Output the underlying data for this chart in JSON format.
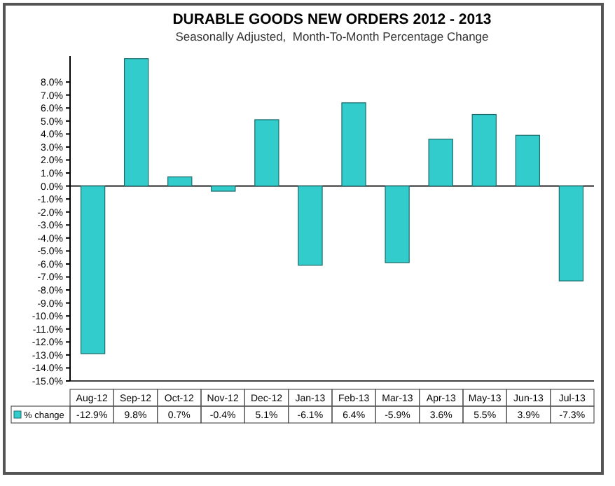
{
  "chart_data": {
    "type": "bar",
    "title": "DURABLE GOODS NEW ORDERS 2012 - 2013",
    "subtitle": "Seasonally Adjusted,  Month-To-Month Percentage Change",
    "categories": [
      "Aug-12",
      "Sep-12",
      "Oct-12",
      "Nov-12",
      "Dec-12",
      "Jan-13",
      "Feb-13",
      "Mar-13",
      "Apr-13",
      "May-13",
      "Jun-13",
      "Jul-13"
    ],
    "series": [
      {
        "name": "% change",
        "color": "#33cccc",
        "values": [
          -12.9,
          9.8,
          0.7,
          -0.4,
          5.1,
          -6.1,
          6.4,
          -5.9,
          3.6,
          5.5,
          3.9,
          -7.3
        ]
      }
    ],
    "value_labels": [
      "-12.9%",
      "9.8%",
      "0.7%",
      "-0.4%",
      "5.1%",
      "-6.1%",
      "6.4%",
      "-5.9%",
      "3.6%",
      "5.5%",
      "3.9%",
      "-7.3%"
    ],
    "ylim": [
      -15,
      10
    ],
    "yticks": [
      {
        "value": -15,
        "label": "-15.0%"
      },
      {
        "value": -14,
        "label": "-14.0%"
      },
      {
        "value": -13,
        "label": "-13.0%"
      },
      {
        "value": -12,
        "label": "-12.0%"
      },
      {
        "value": -11,
        "label": "-11.0%"
      },
      {
        "value": -10,
        "label": "-10.0%"
      },
      {
        "value": -9,
        "label": "-9.0%"
      },
      {
        "value": -8,
        "label": "-8.0%"
      },
      {
        "value": -7,
        "label": "-7.0%"
      },
      {
        "value": -6,
        "label": "-6.0%"
      },
      {
        "value": -5,
        "label": "-5.0%"
      },
      {
        "value": -4,
        "label": "-4.0%"
      },
      {
        "value": -3,
        "label": "-3.0%"
      },
      {
        "value": -2,
        "label": "-2.0%"
      },
      {
        "value": -1,
        "label": "-1.0%"
      },
      {
        "value": 0,
        "label": "0.0%"
      },
      {
        "value": 1,
        "label": "1.0%"
      },
      {
        "value": 2,
        "label": "2.0%"
      },
      {
        "value": 3,
        "label": "3.0%"
      },
      {
        "value": 4,
        "label": "4.0%"
      },
      {
        "value": 5,
        "label": "5.0%"
      },
      {
        "value": 6,
        "label": "6.0%"
      },
      {
        "value": 7,
        "label": "7.0%"
      },
      {
        "value": 8,
        "label": "8.0%"
      }
    ],
    "legend": "bottom"
  }
}
